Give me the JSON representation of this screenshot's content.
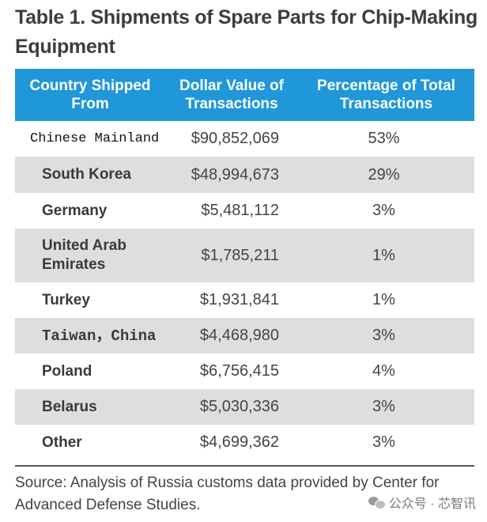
{
  "title": "Table 1. Shipments of Spare Parts for Chip-Making Equipment",
  "headers": {
    "country": "Country Shipped From",
    "value": "Dollar Value of Transactions",
    "percent": "Percentage of Total Transactions"
  },
  "rows": [
    {
      "country": "Chinese Mainland",
      "value": "$90,852,069",
      "percent": "53%"
    },
    {
      "country": "South Korea",
      "value": "$48,994,673",
      "percent": "29%"
    },
    {
      "country": "Germany",
      "value": "$5,481,112",
      "percent": "3%"
    },
    {
      "country": "United Arab Emirates",
      "value": "$1,785,211",
      "percent": "1%"
    },
    {
      "country": "Turkey",
      "value": "$1,931,841",
      "percent": "1%"
    },
    {
      "country": "Taiwan，China",
      "value": "$4,468,980",
      "percent": "3%"
    },
    {
      "country": "Poland",
      "value": "$6,756,415",
      "percent": "4%"
    },
    {
      "country": "Belarus",
      "value": "$5,030,336",
      "percent": "3%"
    },
    {
      "country": "Other",
      "value": "$4,699,362",
      "percent": "3%"
    }
  ],
  "source": "Source: Analysis of Russia customs data provided by Center for Advanced Defense Studies.",
  "watermark": "公众号 · 芯智讯",
  "colors": {
    "header_bg": "#1f97d8",
    "alt_row_bg": "#dedede"
  }
}
